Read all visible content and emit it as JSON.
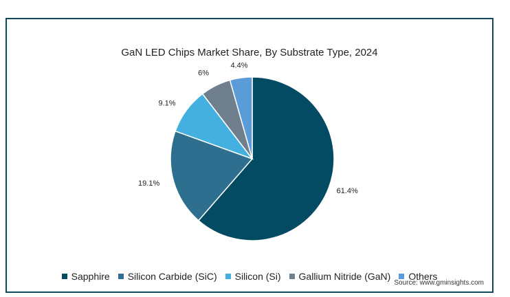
{
  "chart_data": {
    "type": "pie",
    "title": "GaN LED Chips Market Share, By Substrate Type, 2024",
    "categories": [
      "Sapphire",
      "Silicon Carbide (SiC)",
      "Silicon (Si)",
      "Gallium Nitride (GaN)",
      "Others"
    ],
    "values": [
      61.4,
      19.1,
      9.1,
      6,
      4.4
    ],
    "labels": [
      "61.4%",
      "19.1%",
      "9.1%",
      "6%",
      "4.4%"
    ],
    "colors": [
      "#034b63",
      "#2e6e8e",
      "#44b0e0",
      "#6f7f8d",
      "#5a9bd8"
    ],
    "legend_position": "bottom",
    "source": "Source: www.gminsights.com"
  }
}
